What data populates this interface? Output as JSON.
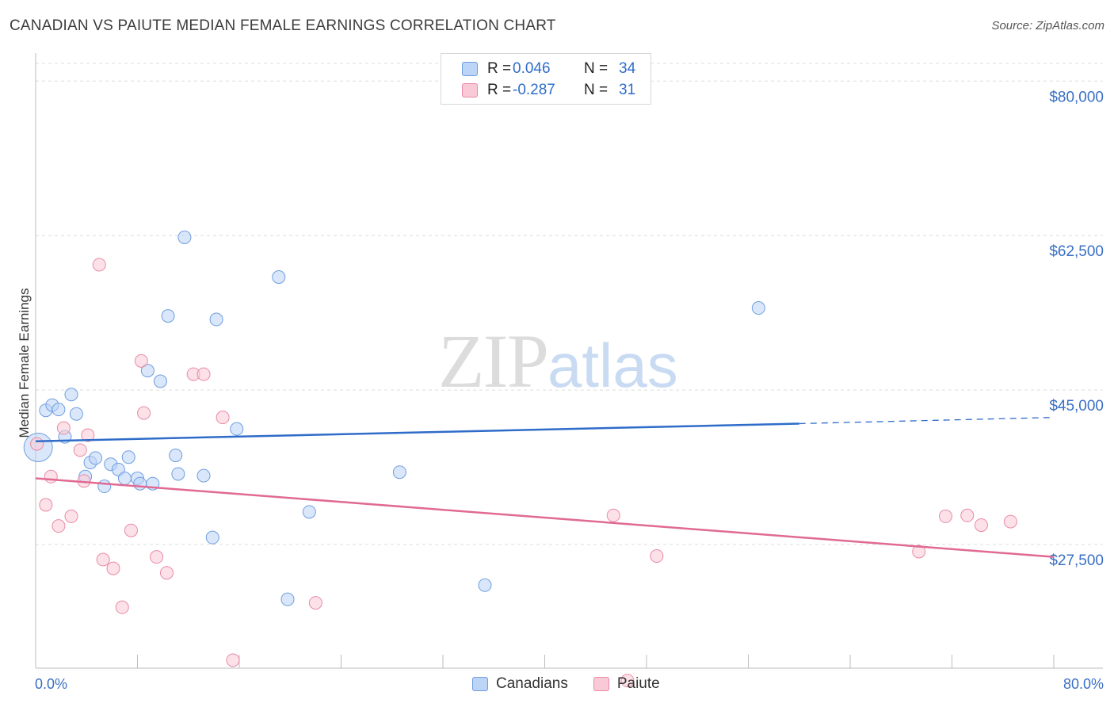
{
  "title": "CANADIAN VS PAIUTE MEDIAN FEMALE EARNINGS CORRELATION CHART",
  "source": "Source: ZipAtlas.com",
  "watermark": {
    "zip": "ZIP",
    "atlas": "atlas"
  },
  "legend": {
    "rows": [
      {
        "r_label": "R =",
        "r_value": "0.046",
        "n_label": "N =",
        "n_value": "34"
      },
      {
        "r_label": "R =",
        "r_value": "-0.287",
        "n_label": "N =",
        "n_value": "31"
      }
    ]
  },
  "bottom_legend": {
    "blue": "Canadians",
    "pink": "Paiute"
  },
  "colors": {
    "blue_fill": "#bcd4f5",
    "blue_stroke": "#6f9ee0",
    "blue_line": "#2f6cc9",
    "pink_fill": "#f9cad6",
    "pink_stroke": "#e98aa6",
    "pink_line": "#e06a93"
  },
  "chart_data": {
    "type": "scatter",
    "title": "CANADIAN VS PAIUTE MEDIAN FEMALE EARNINGS CORRELATION CHART",
    "xlabel": "",
    "ylabel": "Median Female Earnings",
    "xlim": [
      0,
      80
    ],
    "ylim": [
      13500,
      82000
    ],
    "x_tick_labels": [
      "0.0%",
      "80.0%"
    ],
    "y_ticks": [
      {
        "value": 27500,
        "label": "$27,500"
      },
      {
        "value": 45000,
        "label": "$45,000"
      },
      {
        "value": 62500,
        "label": "$62,500"
      },
      {
        "value": 80000,
        "label": "$80,000"
      }
    ],
    "series": [
      {
        "name": "Canadians",
        "points": [
          [
            0.2,
            38500
          ],
          [
            0.8,
            42700
          ],
          [
            1.3,
            43300
          ],
          [
            1.8,
            42800
          ],
          [
            2.3,
            39700
          ],
          [
            2.8,
            44500
          ],
          [
            3.2,
            42300
          ],
          [
            3.9,
            35200
          ],
          [
            4.3,
            36800
          ],
          [
            4.7,
            37300
          ],
          [
            5.4,
            34100
          ],
          [
            5.9,
            36600
          ],
          [
            6.5,
            36000
          ],
          [
            7.0,
            35000
          ],
          [
            7.3,
            37400
          ],
          [
            8.0,
            35000
          ],
          [
            8.2,
            34400
          ],
          [
            9.2,
            34400
          ],
          [
            8.8,
            47200
          ],
          [
            9.8,
            46000
          ],
          [
            10.4,
            53400
          ],
          [
            11.0,
            37600
          ],
          [
            11.2,
            35500
          ],
          [
            11.7,
            62300
          ],
          [
            13.2,
            35300
          ],
          [
            13.9,
            28300
          ],
          [
            14.2,
            53000
          ],
          [
            15.8,
            40600
          ],
          [
            19.1,
            57800
          ],
          [
            19.8,
            21300
          ],
          [
            21.5,
            31200
          ],
          [
            28.6,
            35700
          ],
          [
            35.3,
            22900
          ],
          [
            56.8,
            54300
          ]
        ]
      },
      {
        "name": "Paiute",
        "points": [
          [
            0.1,
            38900
          ],
          [
            0.8,
            32000
          ],
          [
            1.2,
            35200
          ],
          [
            1.8,
            29600
          ],
          [
            2.2,
            40700
          ],
          [
            2.8,
            30700
          ],
          [
            3.5,
            38200
          ],
          [
            3.8,
            34700
          ],
          [
            4.1,
            39900
          ],
          [
            5.0,
            59200
          ],
          [
            5.3,
            25800
          ],
          [
            6.1,
            24800
          ],
          [
            6.8,
            20400
          ],
          [
            7.5,
            29100
          ],
          [
            8.3,
            48300
          ],
          [
            8.5,
            42400
          ],
          [
            9.5,
            26100
          ],
          [
            10.3,
            24300
          ],
          [
            12.4,
            46800
          ],
          [
            13.2,
            46800
          ],
          [
            14.7,
            41900
          ],
          [
            15.5,
            14400
          ],
          [
            22.0,
            20900
          ],
          [
            45.4,
            30800
          ],
          [
            46.5,
            12100
          ],
          [
            48.8,
            26200
          ],
          [
            69.4,
            26700
          ],
          [
            71.5,
            30700
          ],
          [
            73.2,
            30800
          ],
          [
            74.3,
            29700
          ],
          [
            76.6,
            30100
          ]
        ]
      }
    ],
    "trend_lines": [
      {
        "series": "Canadians",
        "x": [
          0,
          60
        ],
        "y": [
          39200,
          41200
        ],
        "dashed_extension": {
          "x": [
            60,
            80
          ],
          "y": [
            41200,
            41900
          ]
        }
      },
      {
        "series": "Paiute",
        "x": [
          0,
          80
        ],
        "y": [
          35000,
          26100
        ]
      }
    ]
  }
}
